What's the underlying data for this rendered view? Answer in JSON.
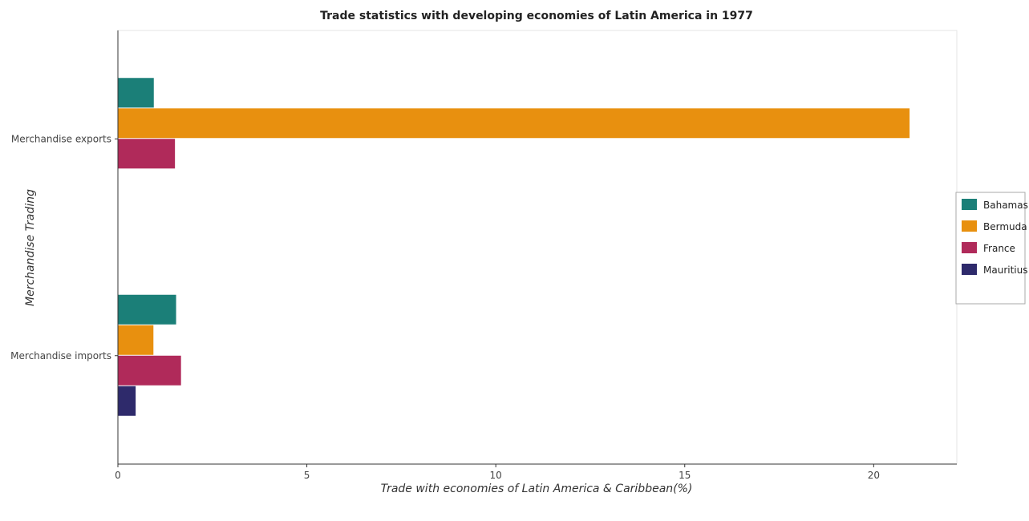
{
  "chart_data": {
    "type": "bar",
    "orientation": "horizontal",
    "title": "Trade statistics with developing economies of Latin America in 1977",
    "xlabel": "Trade with economies of Latin America & Caribbean(%)",
    "ylabel": "Merchandise Trading",
    "categories": [
      "Merchandise exports",
      "Merchandise imports"
    ],
    "xlim": [
      0,
      22.2
    ],
    "xticks": [
      0,
      5,
      10,
      15,
      20
    ],
    "xtick_labels": [
      "0",
      "5",
      "10",
      "15",
      "20"
    ],
    "grid": false,
    "legend_position": "right",
    "series": [
      {
        "name": "Bahamas",
        "color": "#1b7f78",
        "values": [
          0.95,
          1.54
        ]
      },
      {
        "name": "Bermuda",
        "color": "#e8900f",
        "values": [
          20.95,
          0.94
        ]
      },
      {
        "name": "France",
        "color": "#b02a5a",
        "values": [
          1.51,
          1.67
        ]
      },
      {
        "name": "Mauritius",
        "color": "#2e2a6b",
        "values": [
          0.01,
          0.47
        ]
      }
    ]
  }
}
